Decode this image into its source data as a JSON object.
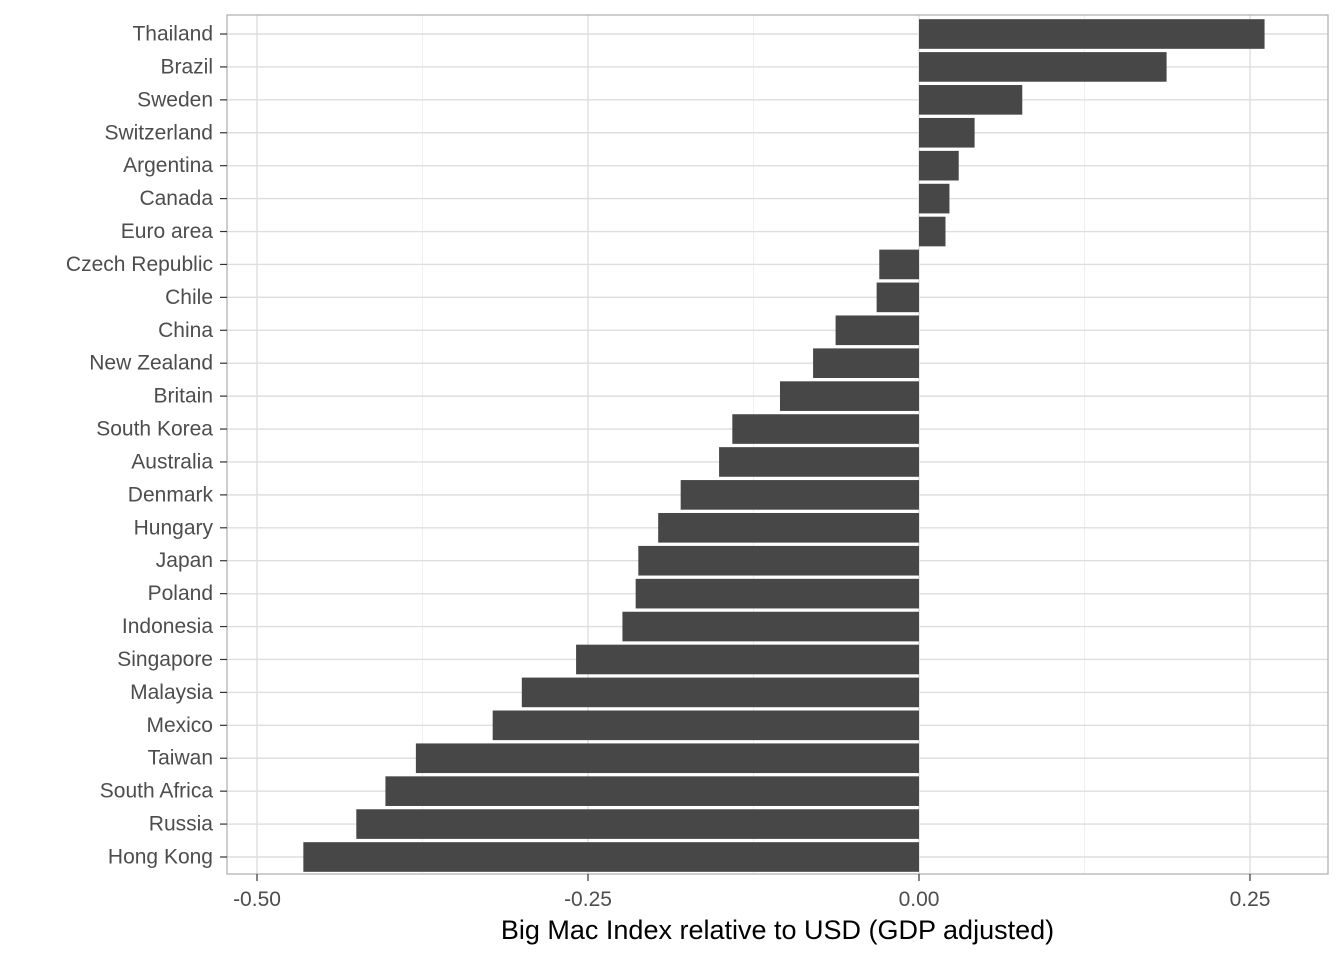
{
  "chart_data": {
    "type": "bar",
    "orientation": "horizontal",
    "xlabel": "Big Mac Index relative to USD (GDP     adjusted)",
    "ylabel": "",
    "xlim": [
      -0.5,
      0.3
    ],
    "x_ticks": [
      -0.5,
      -0.25,
      0.0,
      0.25
    ],
    "x_tick_labels": [
      "-0.50",
      "-0.25",
      "0.00",
      "0.25"
    ],
    "grid": true,
    "bar_color": "#474747",
    "categories": [
      "Thailand",
      "Brazil",
      "Sweden",
      "Switzerland",
      "Argentina",
      "Canada",
      "Euro area",
      "Czech Republic",
      "Chile",
      "China",
      "New Zealand",
      "Britain",
      "South Korea",
      "Australia",
      "Denmark",
      "Hungary",
      "Japan",
      "Poland",
      "Indonesia",
      "Singapore",
      "Malaysia",
      "Mexico",
      "Taiwan",
      "South Africa",
      "Russia",
      "Hong Kong"
    ],
    "values": [
      0.261,
      0.187,
      0.078,
      0.042,
      0.03,
      0.023,
      0.02,
      -0.03,
      -0.032,
      -0.063,
      -0.08,
      -0.105,
      -0.141,
      -0.151,
      -0.18,
      -0.197,
      -0.212,
      -0.214,
      -0.224,
      -0.259,
      -0.3,
      -0.322,
      -0.38,
      -0.403,
      -0.425,
      -0.465
    ]
  }
}
